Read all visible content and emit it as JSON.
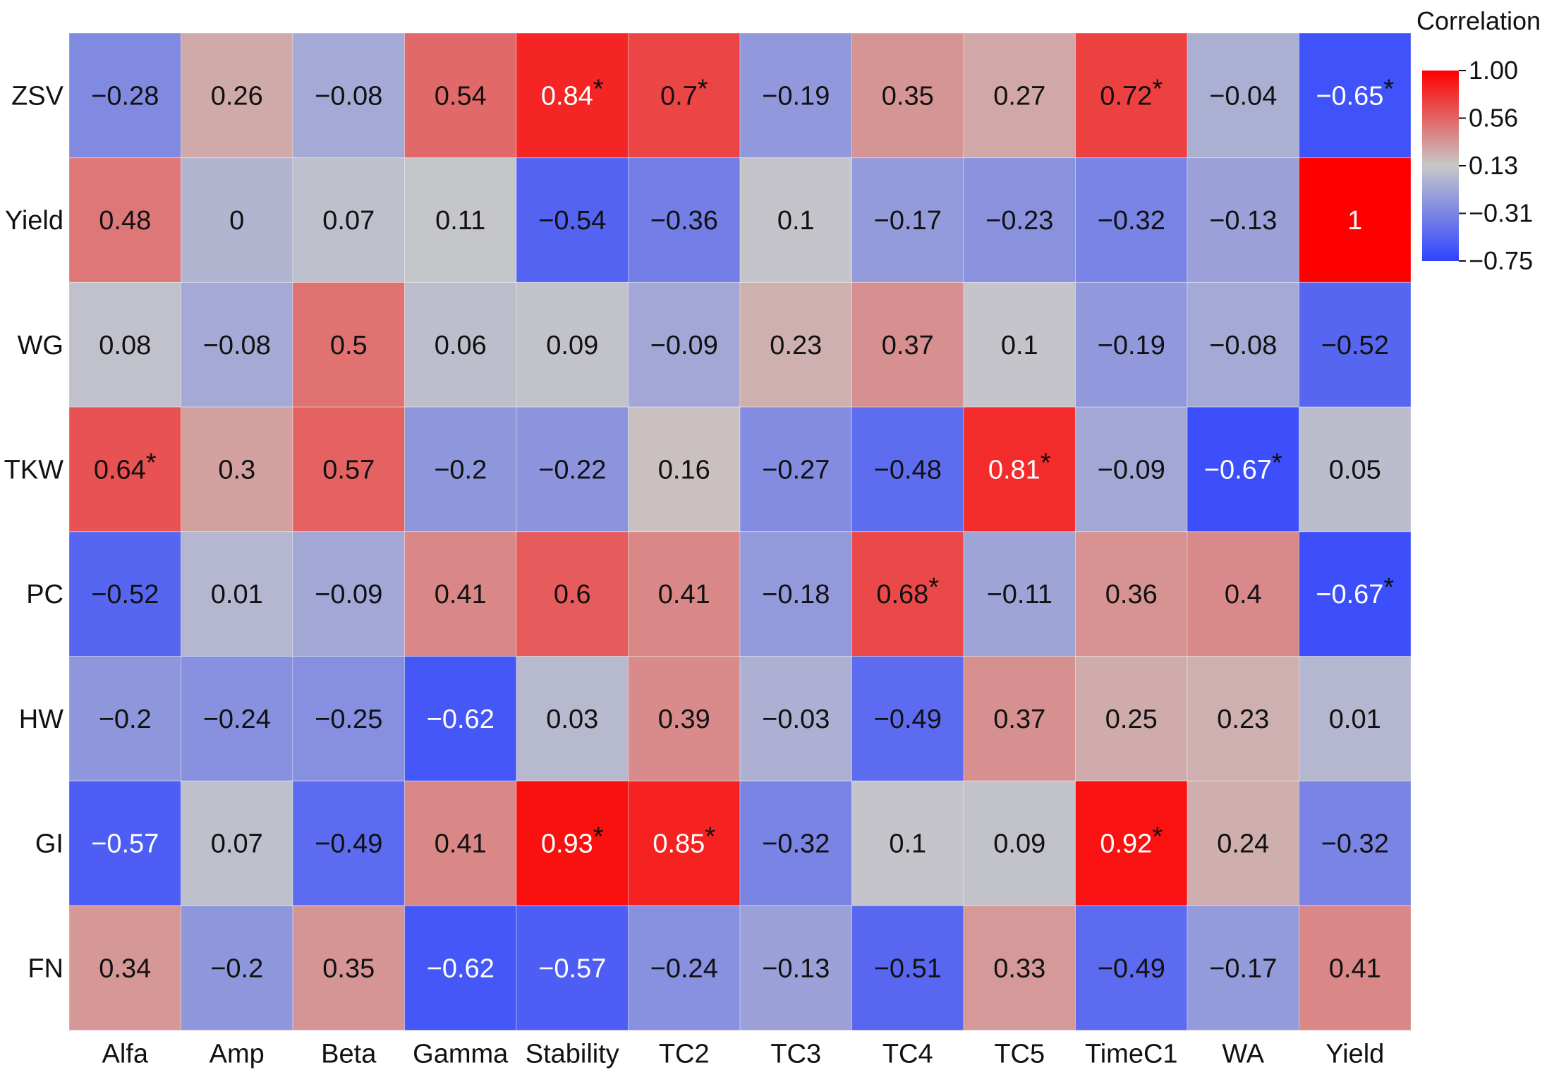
{
  "chart_data": {
    "type": "heatmap",
    "legend": {
      "title": "Correlation",
      "ticks": [
        "1.00",
        "0.56",
        "0.13",
        "-0.31",
        "-0.75"
      ],
      "min": -0.75,
      "max": 1.0,
      "placement": "top-right",
      "colors": {
        "low": "#2f43ff",
        "mid": "#c8c8c8",
        "high": "#ff0000"
      }
    },
    "columns": [
      "Alfa",
      "Amp",
      "Beta",
      "Gamma",
      "Stability",
      "TC2",
      "TC3",
      "TC4",
      "TC5",
      "TimeC1",
      "WA",
      "Yield"
    ],
    "rows": [
      "ZSV",
      "Yield",
      "WG",
      "TKW",
      "PC",
      "HW",
      "GI",
      "FN"
    ],
    "values": [
      [
        -0.28,
        0.26,
        -0.08,
        0.54,
        0.84,
        0.7,
        -0.19,
        0.35,
        0.27,
        0.72,
        -0.04,
        -0.65
      ],
      [
        0.48,
        0,
        0.07,
        0.11,
        -0.54,
        -0.36,
        0.1,
        -0.17,
        -0.23,
        -0.32,
        -0.13,
        1
      ],
      [
        0.08,
        -0.08,
        0.5,
        0.06,
        0.09,
        -0.09,
        0.23,
        0.37,
        0.1,
        -0.19,
        -0.08,
        -0.52
      ],
      [
        0.64,
        0.3,
        0.57,
        -0.2,
        -0.22,
        0.16,
        -0.27,
        -0.48,
        0.81,
        -0.09,
        -0.67,
        0.05
      ],
      [
        -0.52,
        0.01,
        -0.09,
        0.41,
        0.6,
        0.41,
        -0.18,
        0.68,
        -0.11,
        0.36,
        0.4,
        -0.67
      ],
      [
        -0.2,
        -0.24,
        -0.25,
        -0.62,
        0.03,
        0.39,
        -0.03,
        -0.49,
        0.37,
        0.25,
        0.23,
        0.01
      ],
      [
        -0.57,
        0.07,
        -0.49,
        0.41,
        0.93,
        0.85,
        -0.32,
        0.1,
        0.09,
        0.92,
        0.24,
        -0.32
      ],
      [
        0.34,
        -0.2,
        0.35,
        -0.62,
        -0.57,
        -0.24,
        -0.13,
        -0.51,
        0.33,
        -0.49,
        -0.17,
        0.41
      ]
    ],
    "significant": [
      [
        false,
        false,
        false,
        false,
        true,
        true,
        false,
        false,
        false,
        true,
        false,
        true
      ],
      [
        false,
        false,
        false,
        false,
        false,
        false,
        false,
        false,
        false,
        false,
        false,
        false
      ],
      [
        false,
        false,
        false,
        false,
        false,
        false,
        false,
        false,
        false,
        false,
        false,
        false
      ],
      [
        true,
        false,
        false,
        false,
        false,
        false,
        false,
        false,
        true,
        false,
        true,
        false
      ],
      [
        false,
        false,
        false,
        false,
        false,
        false,
        false,
        true,
        false,
        false,
        false,
        true
      ],
      [
        false,
        false,
        false,
        false,
        false,
        false,
        false,
        false,
        false,
        false,
        false,
        false
      ],
      [
        false,
        false,
        false,
        false,
        true,
        true,
        false,
        false,
        false,
        true,
        false,
        false
      ],
      [
        false,
        false,
        false,
        false,
        false,
        false,
        false,
        false,
        false,
        false,
        false,
        false
      ]
    ],
    "significance_marker": "*"
  }
}
